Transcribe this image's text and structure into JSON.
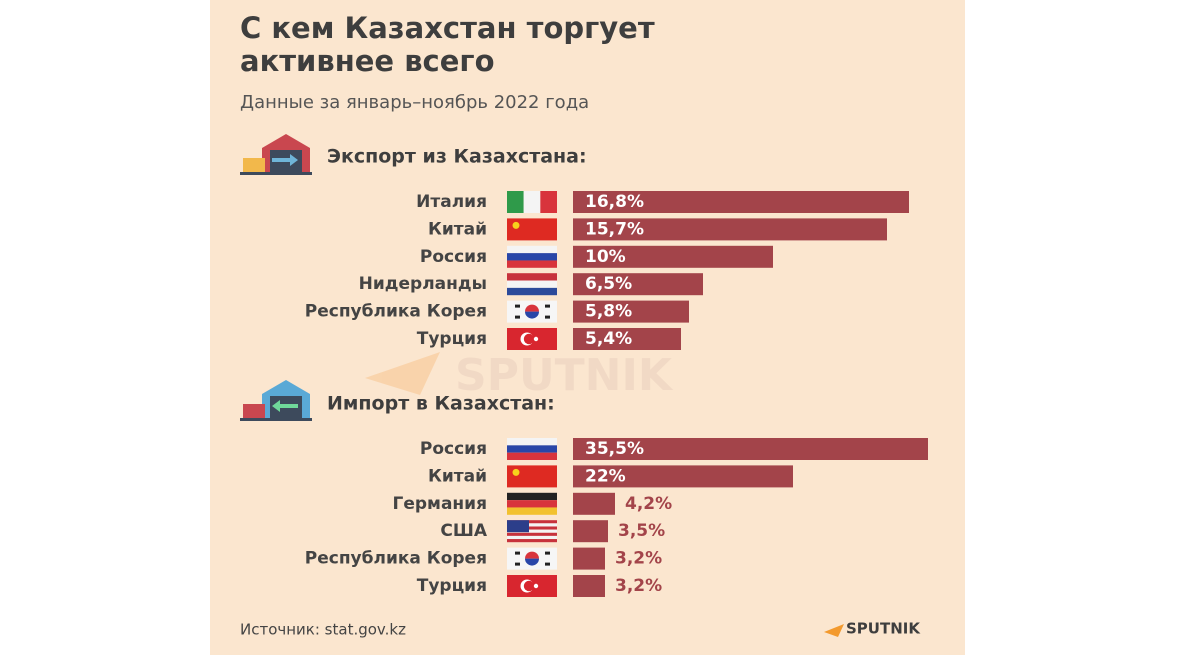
{
  "title": [
    "С кем Казахстан торгует",
    "активнее всего"
  ],
  "subtitle": "Данные за январь–ноябрь 2022 года",
  "source": "Источник: stat.gov.kz",
  "brand": "SPUTNIK",
  "chart_data": [
    {
      "type": "bar",
      "orientation": "horizontal",
      "title": "Экспорт из Казахстана:",
      "categories": [
        "Италия",
        "Китай",
        "Россия",
        "Нидерланды",
        "Республика Корея",
        "Турция"
      ],
      "values": [
        16.8,
        15.7,
        10,
        6.5,
        5.8,
        5.4
      ],
      "value_labels": [
        "16,8%",
        "15,7%",
        "10%",
        "6,5%",
        "5,8%",
        "5,4%"
      ],
      "color": "#a3444a"
    },
    {
      "type": "bar",
      "orientation": "horizontal",
      "title": "Импорт в Казахстан:",
      "categories": [
        "Россия",
        "Китай",
        "Германия",
        "США",
        "Республика Корея",
        "Турция"
      ],
      "values": [
        35.5,
        22,
        4.2,
        3.5,
        3.2,
        3.2
      ],
      "value_labels": [
        "35,5%",
        "22%",
        "4,2%",
        "3,5%",
        "3,2%",
        "3,2%"
      ],
      "color": "#a3444a"
    }
  ]
}
